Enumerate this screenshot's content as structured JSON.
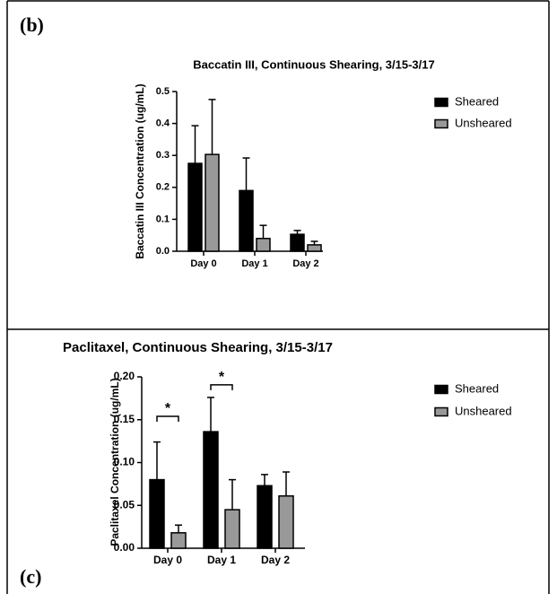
{
  "chart_data": [
    {
      "type": "bar",
      "panel_label": "(b)",
      "title": "Baccatin III, Continuous Shearing, 3/15-3/17",
      "y_label": "Baccatin III Concentration (ug/mL)",
      "categories": [
        "Day 0",
        "Day 1",
        "Day 2"
      ],
      "series": [
        {
          "name": "Sheared",
          "color": "#000000",
          "values": [
            0.275,
            0.19,
            0.053
          ],
          "errors": [
            0.118,
            0.102,
            0.012
          ]
        },
        {
          "name": "Unsheared",
          "color": "#999999",
          "values": [
            0.303,
            0.04,
            0.02
          ],
          "errors": [
            0.172,
            0.041,
            0.011
          ]
        }
      ],
      "ylim": [
        0,
        0.5
      ],
      "yticks": [
        {
          "value": 0,
          "label": "0.0"
        },
        0.1,
        0.2,
        0.3,
        0.4,
        0.5
      ],
      "legend": "upper right"
    },
    {
      "type": "bar",
      "panel_label": "(c)",
      "title": "Paclitaxel, Continuous Shearing, 3/15-3/17",
      "y_label": "Paclitaxel Concentration (ug/mL)",
      "categories": [
        "Day 0",
        "Day 1",
        "Day 2"
      ],
      "series": [
        {
          "name": "Sheared",
          "color": "#000000",
          "values": [
            0.08,
            0.136,
            0.073
          ],
          "errors": [
            0.044,
            0.04,
            0.013
          ]
        },
        {
          "name": "Unsheared",
          "color": "#999999",
          "values": [
            0.018,
            0.045,
            0.061
          ],
          "errors": [
            0.009,
            0.035,
            0.028
          ]
        }
      ],
      "ylim": [
        0,
        0.2
      ],
      "yticks": [
        {
          "value": 0,
          "label": "0.00"
        },
        0.05,
        {
          "value": 0.1,
          "label": "0.10"
        },
        0.15,
        {
          "value": 0.2,
          "label": "0.20"
        }
      ],
      "annotations": [
        {
          "text": "*",
          "category": "Day 0"
        },
        {
          "text": "*",
          "category": "Day 1"
        }
      ],
      "legend": "upper right"
    }
  ]
}
